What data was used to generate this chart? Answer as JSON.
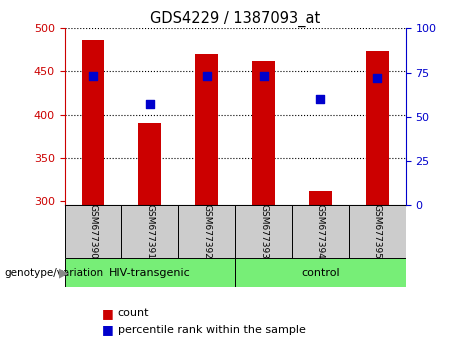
{
  "title": "GDS4229 / 1387093_at",
  "samples": [
    "GSM677390",
    "GSM677391",
    "GSM677392",
    "GSM677393",
    "GSM677394",
    "GSM677395"
  ],
  "count_values": [
    487,
    390,
    470,
    462,
    312,
    474
  ],
  "percentile_values": [
    73,
    57,
    73,
    73,
    60,
    72
  ],
  "ylim_left": [
    295,
    500
  ],
  "ylim_right": [
    0,
    100
  ],
  "yticks_left": [
    300,
    350,
    400,
    450,
    500
  ],
  "yticks_right": [
    0,
    25,
    50,
    75,
    100
  ],
  "bar_color": "#cc0000",
  "dot_color": "#0000cc",
  "gridline_color": "#000000",
  "bar_bottom": 295,
  "groups": [
    {
      "label": "HIV-transgenic",
      "indices": [
        0,
        1,
        2
      ],
      "color": "#77ee77"
    },
    {
      "label": "control",
      "indices": [
        3,
        4,
        5
      ],
      "color": "#77ee77"
    }
  ],
  "group_label": "genotype/variation",
  "legend_count_label": "count",
  "legend_percentile_label": "percentile rank within the sample",
  "axis_label_color_left": "#cc0000",
  "axis_label_color_right": "#0000cc",
  "cell_bg_color": "#cccccc",
  "plot_bg_color": "#ffffff"
}
